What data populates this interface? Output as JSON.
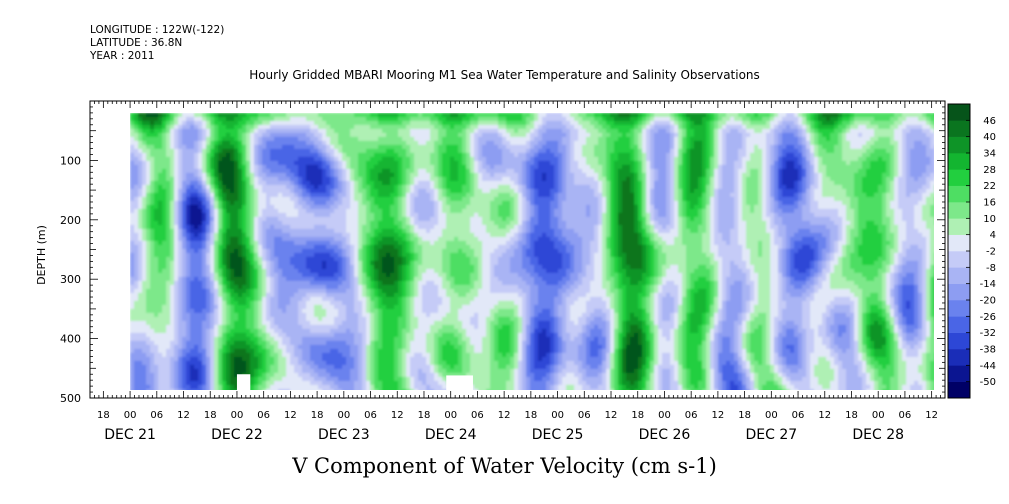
{
  "header": {
    "longitude": "LONGITUDE : 122W(-122)",
    "latitude": "LATITUDE : 36.8N",
    "year": "YEAR : 2011"
  },
  "chart_data": {
    "type": "heatmap",
    "title": "Hourly Gridded MBARI Mooring M1 Sea Water Temperature and Salinity Observations",
    "xlabel": "V Component of Water Velocity (cm s-1)",
    "ylabel": "DEPTH (m)",
    "ylim": [
      500,
      0
    ],
    "y_ticks": [
      100,
      200,
      300,
      400,
      500
    ],
    "x_hour_ticks": [
      "18",
      "00",
      "06",
      "12",
      "18",
      "00",
      "06",
      "12",
      "18",
      "00",
      "06",
      "12",
      "18",
      "00",
      "06",
      "12",
      "18",
      "00",
      "06",
      "12",
      "18",
      "00",
      "06",
      "12",
      "18",
      "00",
      "06",
      "12",
      "18",
      "00",
      "06",
      "12"
    ],
    "x_day_labels": [
      "DEC 21",
      "DEC 22",
      "DEC 23",
      "DEC 24",
      "DEC 25",
      "DEC 26",
      "DEC 27",
      "DEC 28"
    ],
    "xlim": [
      "2011-12-20T15:00",
      "2011-12-28T15:00"
    ],
    "data_start": "2011-12-21T00:00",
    "data_end": "2011-12-28T13:00",
    "depth_range": [
      20,
      490
    ],
    "colorbar": {
      "levels": [
        -50,
        -44,
        -38,
        -32,
        -26,
        -20,
        -14,
        -8,
        -2,
        4,
        10,
        16,
        22,
        28,
        34,
        40,
        46
      ],
      "labels": [
        "46",
        "40",
        "34",
        "28",
        "22",
        "16",
        "10",
        "4",
        "-2",
        "-8",
        "-14",
        "-20",
        "-26",
        "-32",
        "-38",
        "-44",
        "-50"
      ],
      "colors": [
        "#000066",
        "#0b1591",
        "#1a2db8",
        "#2d47d6",
        "#4a65e6",
        "#6a82ee",
        "#8d9df2",
        "#a9b4f4",
        "#c5cbf7",
        "#e2e8f8",
        "#aff0b4",
        "#7de88a",
        "#4ede63",
        "#22cf3f",
        "#13b530",
        "#0e9427",
        "#0a751f",
        "#06541a"
      ]
    },
    "missing_data_blocks": [
      {
        "start": "2011-12-22T00:00",
        "end": "2011-12-22T03:00",
        "depth_from": 460
      },
      {
        "start": "2011-12-23T23:00",
        "end": "2011-12-24T05:00",
        "depth_from": 462
      }
    ]
  }
}
